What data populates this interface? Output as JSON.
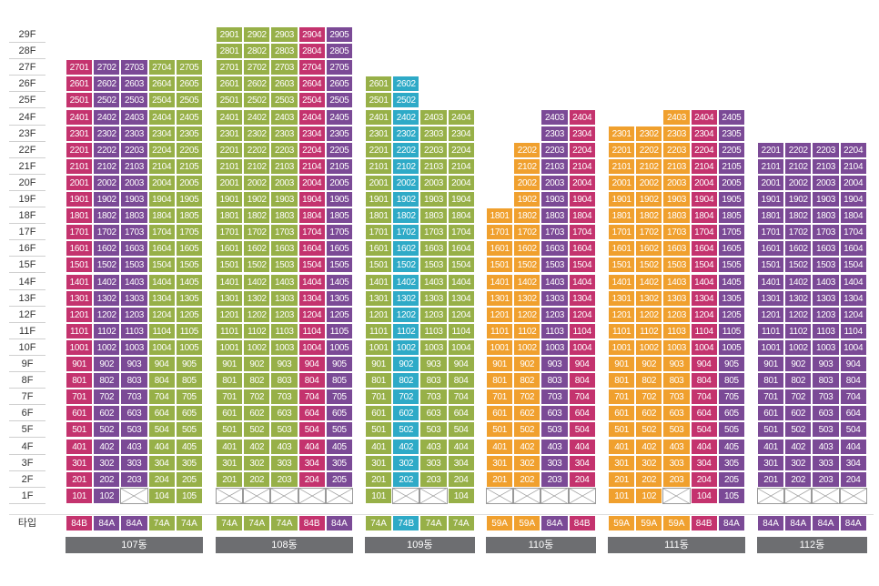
{
  "labels": {
    "type_row": "타입"
  },
  "floors": [
    "29F",
    "28F",
    "27F",
    "26F",
    "25F",
    "24F",
    "23F",
    "22F",
    "21F",
    "20F",
    "19F",
    "18F",
    "17F",
    "16F",
    "15F",
    "14F",
    "13F",
    "12F",
    "11F",
    "10F",
    "9F",
    "8F",
    "7F",
    "6F",
    "5F",
    "4F",
    "3F",
    "2F",
    "1F"
  ],
  "colors": {
    "84B": "#c4336e",
    "84A": "#7b4a96",
    "74A": "#97b048",
    "74B": "#2eaac7",
    "59A": "#f0a02e"
  },
  "buildings": [
    {
      "name": "107동",
      "types": [
        "84B",
        "84A",
        "84A",
        "74A",
        "74A"
      ],
      "top_floor": 27,
      "first_floor": [
        "101",
        "102",
        "",
        "104",
        "105"
      ],
      "col_start_floor": [
        1,
        1,
        1,
        1,
        1
      ]
    },
    {
      "name": "108동",
      "types": [
        "74A",
        "74A",
        "74A",
        "84B",
        "84A"
      ],
      "top_floor": 29,
      "first_floor": [
        "",
        "",
        "",
        "",
        ""
      ],
      "col_start_floor": [
        1,
        1,
        1,
        1,
        1
      ]
    },
    {
      "name": "109동",
      "types": [
        "74A",
        "74B",
        "74A",
        "74A"
      ],
      "top_floor": 26,
      "col_top_floor": [
        26,
        26,
        24,
        24
      ],
      "first_floor": [
        "101",
        "",
        "",
        "104"
      ],
      "col_start_floor": [
        1,
        1,
        1,
        1
      ]
    },
    {
      "name": "110동",
      "types": [
        "59A",
        "59A",
        "84A",
        "84B"
      ],
      "col_top_floor": [
        18,
        22,
        24,
        24
      ],
      "first_floor": [
        "",
        "",
        "",
        ""
      ],
      "col_start_floor": [
        1,
        1,
        1,
        1
      ]
    },
    {
      "name": "111동",
      "types": [
        "59A",
        "59A",
        "59A",
        "84B",
        "84A"
      ],
      "col_top_floor": [
        23,
        23,
        24,
        24,
        24
      ],
      "first_floor": [
        "101",
        "102",
        "",
        "104",
        "105"
      ],
      "col_start_floor": [
        1,
        1,
        1,
        1,
        1
      ]
    },
    {
      "name": "112동",
      "types": [
        "84A",
        "84A",
        "84A",
        "84A"
      ],
      "col_top_floor": [
        22,
        22,
        22,
        22
      ],
      "first_floor": [
        "",
        "",
        "",
        ""
      ],
      "col_start_floor": [
        1,
        1,
        1,
        1
      ]
    }
  ]
}
